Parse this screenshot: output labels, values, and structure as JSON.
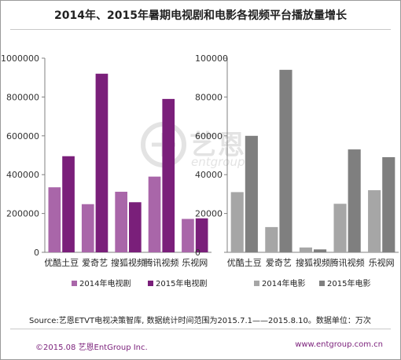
{
  "title": "2014年、2015年暑期电视剧和电影各视频平台播放量增长",
  "source": "Source:艺恩ETVT电视决策智库, 数据统计时间范围为2015.7.1——2015.8.10。数据单位：万次",
  "footer": {
    "copyright": "©2015.08 艺恩EntGroup Inc.",
    "site": "www.entgroup.com.cn"
  },
  "watermark": {
    "brand": "艺恩",
    "sub": "entgroup"
  },
  "colors": {
    "tv_2014": "#a966a9",
    "tv_2015": "#7a1f7a",
    "film_2014": "#a6a6a6",
    "film_2015": "#7f7f7f"
  },
  "chart_data": [
    {
      "type": "bar",
      "categories": [
        "优酷土豆",
        "爱奇艺",
        "搜狐视频",
        "腾讯视频",
        "乐视网"
      ],
      "series": [
        {
          "name": "2014年电视剧",
          "values": [
            335000,
            248000,
            312000,
            390000,
            172000
          ]
        },
        {
          "name": "2015年电视剧",
          "values": [
            495000,
            920000,
            258000,
            790000,
            175000
          ]
        }
      ],
      "ylim": [
        0,
        1000000
      ],
      "yticks": [
        "0",
        "200000",
        "400000",
        "600000",
        "800000",
        "1000000"
      ],
      "grid": false,
      "legend": "bottom"
    },
    {
      "type": "bar",
      "categories": [
        "优酷土豆",
        "爱奇艺",
        "搜狐视频",
        "腾讯视频",
        "乐视网"
      ],
      "series": [
        {
          "name": "2014年电影",
          "values": [
            31000,
            13000,
            2500,
            25000,
            32000
          ]
        },
        {
          "name": "2015年电影",
          "values": [
            60000,
            94000,
            1500,
            53000,
            49000
          ]
        }
      ],
      "ylim": [
        0,
        100000
      ],
      "yticks": [
        "0",
        "20000",
        "40000",
        "60000",
        "80000",
        "100000"
      ],
      "grid": false,
      "legend": "bottom"
    }
  ]
}
